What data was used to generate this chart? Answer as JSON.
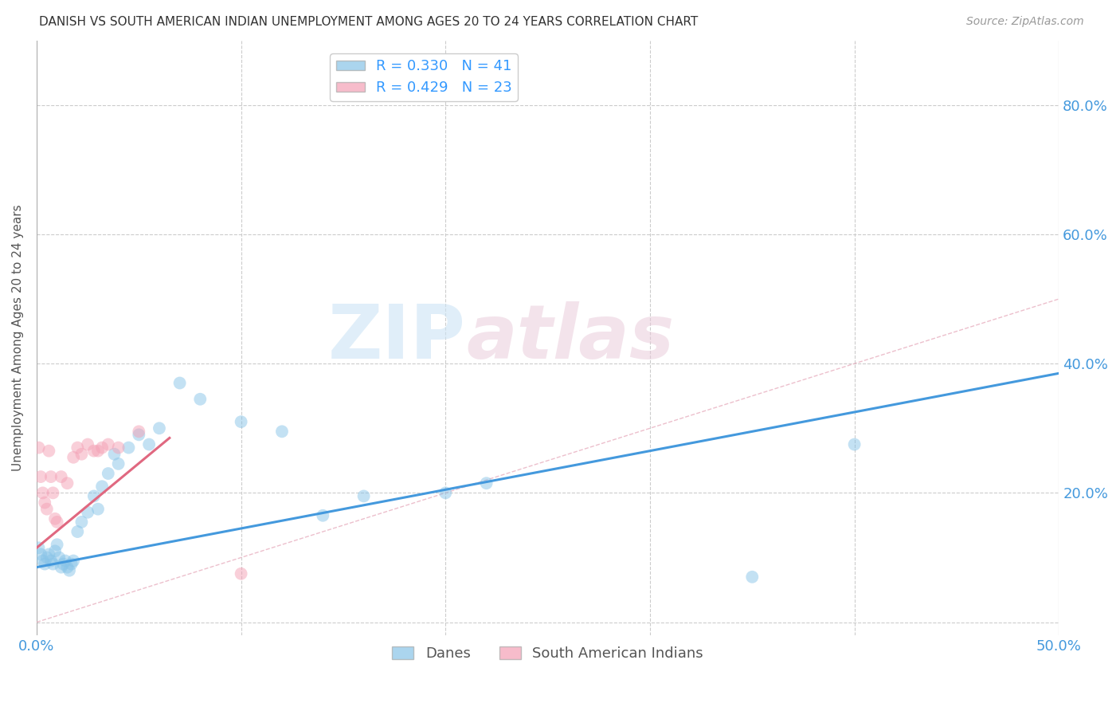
{
  "title": "DANISH VS SOUTH AMERICAN INDIAN UNEMPLOYMENT AMONG AGES 20 TO 24 YEARS CORRELATION CHART",
  "source": "Source: ZipAtlas.com",
  "ylabel": "Unemployment Among Ages 20 to 24 years",
  "xlim": [
    0.0,
    0.5
  ],
  "ylim": [
    -0.02,
    0.9
  ],
  "xticks": [
    0.0,
    0.1,
    0.2,
    0.3,
    0.4,
    0.5
  ],
  "xtick_labels": [
    "0.0%",
    "",
    "",
    "",
    "",
    "50.0%"
  ],
  "yticks": [
    0.0,
    0.2,
    0.4,
    0.6,
    0.8
  ],
  "ytick_labels_right": [
    "",
    "20.0%",
    "40.0%",
    "60.0%",
    "80.0%"
  ],
  "danes_color": "#88c4e8",
  "sai_color": "#f4a0b5",
  "danes_line_color": "#4499dd",
  "sai_line_color": "#e06880",
  "danes_R": 0.33,
  "danes_N": 41,
  "sai_R": 0.429,
  "sai_N": 23,
  "watermark_zip": "ZIP",
  "watermark_atlas": "atlas",
  "background_color": "#ffffff",
  "danes_scatter_x": [
    0.001,
    0.002,
    0.003,
    0.004,
    0.005,
    0.006,
    0.007,
    0.008,
    0.009,
    0.01,
    0.011,
    0.012,
    0.013,
    0.014,
    0.015,
    0.016,
    0.017,
    0.018,
    0.02,
    0.022,
    0.025,
    0.028,
    0.03,
    0.032,
    0.035,
    0.038,
    0.04,
    0.045,
    0.05,
    0.055,
    0.06,
    0.07,
    0.08,
    0.1,
    0.12,
    0.14,
    0.16,
    0.2,
    0.22,
    0.4,
    0.35
  ],
  "danes_scatter_y": [
    0.115,
    0.105,
    0.095,
    0.09,
    0.1,
    0.105,
    0.095,
    0.09,
    0.11,
    0.12,
    0.1,
    0.085,
    0.09,
    0.095,
    0.085,
    0.08,
    0.09,
    0.095,
    0.14,
    0.155,
    0.17,
    0.195,
    0.175,
    0.21,
    0.23,
    0.26,
    0.245,
    0.27,
    0.29,
    0.275,
    0.3,
    0.37,
    0.345,
    0.31,
    0.295,
    0.165,
    0.195,
    0.2,
    0.215,
    0.275,
    0.07
  ],
  "sai_scatter_x": [
    0.001,
    0.002,
    0.003,
    0.004,
    0.005,
    0.006,
    0.007,
    0.008,
    0.009,
    0.01,
    0.012,
    0.015,
    0.018,
    0.02,
    0.022,
    0.025,
    0.028,
    0.03,
    0.032,
    0.035,
    0.04,
    0.05,
    0.1
  ],
  "sai_scatter_y": [
    0.27,
    0.225,
    0.2,
    0.185,
    0.175,
    0.265,
    0.225,
    0.2,
    0.16,
    0.155,
    0.225,
    0.215,
    0.255,
    0.27,
    0.26,
    0.275,
    0.265,
    0.265,
    0.27,
    0.275,
    0.27,
    0.295,
    0.075
  ],
  "danes_line_x": [
    0.0,
    0.5
  ],
  "danes_line_y": [
    0.085,
    0.385
  ],
  "sai_line_x": [
    0.0,
    0.065
  ],
  "sai_line_y": [
    0.115,
    0.285
  ],
  "ref_line_x": [
    0.0,
    0.9
  ],
  "ref_line_y": [
    0.0,
    0.9
  ]
}
